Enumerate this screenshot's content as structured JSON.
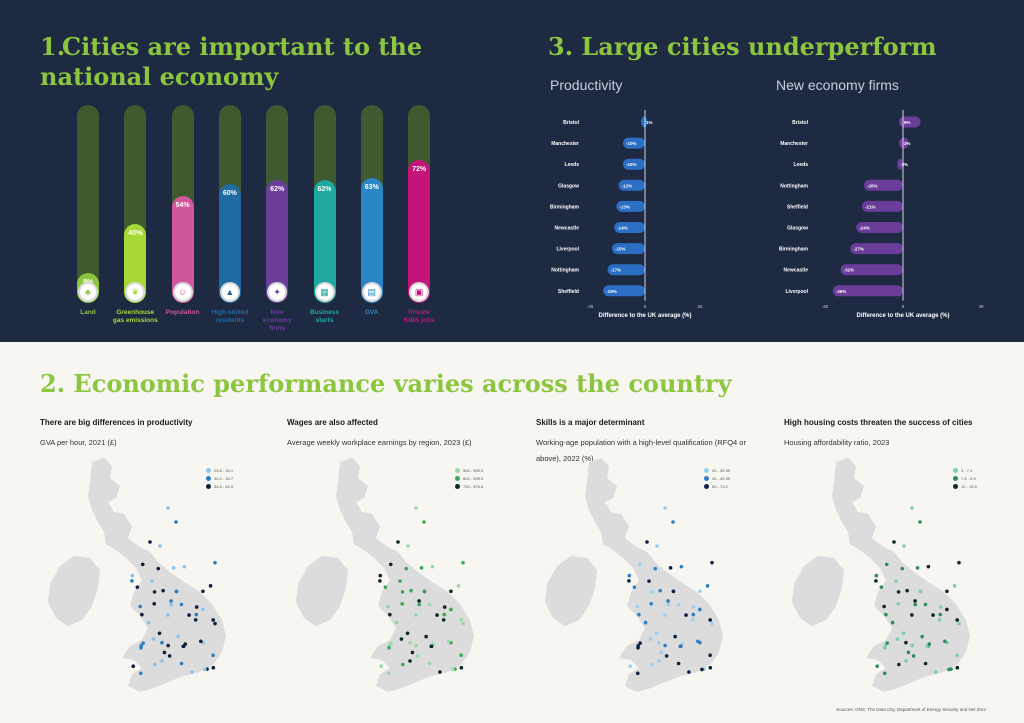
{
  "sections": {
    "s1_number": "1.",
    "s1_title": "Cities are important to the national economy",
    "s3_title": "3. Large cities underperform",
    "s2_title": "2. Economic performance varies across the country",
    "productivity_label": "Productivity",
    "new_economy_label": "New economy firms"
  },
  "colors": {
    "navy": "#1e2a42",
    "green_title": "#8cc63f",
    "track": "#3e5a2e",
    "hbar_blue": "#2a6fc4",
    "hbar_purple": "#6a3d9a"
  },
  "chart_data": [
    {
      "type": "bar",
      "orientation": "vertical",
      "categories": [
        "Land",
        "Greenhouse gas emissions",
        "Population",
        "High-skilled residents",
        "New economy firms",
        "Business starts",
        "GVA",
        "Private KIBS jobs"
      ],
      "values": [
        9,
        40,
        54,
        60,
        62,
        62,
        63,
        72
      ],
      "pct_labels": [
        "9%",
        "40%",
        "54%",
        "60%",
        "62%",
        "62%",
        "63%",
        "72%"
      ],
      "label_lines": [
        [
          "Land"
        ],
        [
          "Greenhouse",
          "gas emissions"
        ],
        [
          "Population"
        ],
        [
          "High-skilled",
          "residents"
        ],
        [
          "New",
          "economy",
          "firms"
        ],
        [
          "Business",
          "starts"
        ],
        [
          "GVA"
        ],
        [
          "Private",
          "KIBS jobs"
        ]
      ],
      "colors": [
        "#8cc63f",
        "#a6d936",
        "#d1579c",
        "#1f6aa0",
        "#6a3d9a",
        "#1fa8a0",
        "#2b86c7",
        "#c4147a"
      ],
      "icons": [
        "tree-icon",
        "leaf-icon",
        "people-icon",
        "graduation-cap-icon",
        "lightbulb-icon",
        "building-icon",
        "money-icon",
        "briefcase-icon"
      ],
      "ylim": [
        0,
        100
      ]
    },
    {
      "type": "bar",
      "orientation": "horizontal",
      "title": "Productivity",
      "categories": [
        "Bristol",
        "Manchester",
        "Leeds",
        "Glasgow",
        "Birmingham",
        "Newcastle",
        "Liverpool",
        "Nottingham",
        "Sheffield"
      ],
      "values": [
        1,
        -10,
        -10,
        -12,
        -13,
        -14,
        -15,
        -17,
        -19
      ],
      "value_labels": [
        "1%",
        "-10%",
        "-10%",
        "-12%",
        "-13%",
        "-14%",
        "-15%",
        "-17%",
        "-19%"
      ],
      "xlabel": "Difference to the UK average (%)",
      "xlim": [
        -25,
        25
      ],
      "ticks": [
        "-25",
        "0",
        "25"
      ]
    },
    {
      "type": "bar",
      "orientation": "horizontal",
      "title": "New economy firms",
      "categories": [
        "Bristol",
        "Manchester",
        "Leeds",
        "Nottingham",
        "Sheffield",
        "Glasgow",
        "Birmingham",
        "Newcastle",
        "Liverpool"
      ],
      "values": [
        9,
        3,
        -3,
        -20,
        -21,
        -24,
        -27,
        -32,
        -36
      ],
      "value_labels": [
        "9%",
        "3%",
        "-3%",
        "-20%",
        "-21%",
        "-24%",
        "-27%",
        "-32%",
        "-36%"
      ],
      "xlabel": "Difference to the UK average (%)",
      "xlim": [
        -40,
        40
      ],
      "ticks": [
        "-40",
        "0",
        "40"
      ]
    }
  ],
  "maps": [
    {
      "title": "There are big differences in productivity",
      "subtitle": "GVA per hour, 2021 (£)",
      "legend": [
        {
          "label": "25.8 - 30.1",
          "color": "#8ec3e8"
        },
        {
          "label": "30.2 - 34.7",
          "color": "#2f7fc0"
        },
        {
          "label": "34.8 - 62.9",
          "color": "#0d2240"
        }
      ],
      "dot_colors": [
        "#8ec3e8",
        "#2f7fc0",
        "#0d2240"
      ]
    },
    {
      "title": "Wages are also affected",
      "subtitle": "Average weekly workplace earnings by region, 2023 (£)",
      "legend": [
        {
          "label": "500 - 599.9",
          "color": "#9ad9a6"
        },
        {
          "label": "600 - 699.9",
          "color": "#3ba85a"
        },
        {
          "label": "700 - 876.8",
          "color": "#0d2a22"
        }
      ],
      "dot_colors": [
        "#9ad9a6",
        "#3ba85a",
        "#0d2a22"
      ]
    },
    {
      "title": "Skills is a major determinant",
      "subtitle": "Working-age population with a high-level qualification (RFQ4 or above), 2022 (%)",
      "legend": [
        {
          "label": "20 - 39.99",
          "color": "#9ad1ee"
        },
        {
          "label": "40 - 49.99",
          "color": "#2f7fc0"
        },
        {
          "label": "50 - 73.2",
          "color": "#0d2240"
        }
      ],
      "dot_colors": [
        "#9ad1ee",
        "#2f7fc0",
        "#0d2240"
      ]
    },
    {
      "title": "High housing costs threaten the success of cities",
      "subtitle": "Housing affordability ratio, 2023",
      "legend": [
        {
          "label": "3 - 7.4",
          "color": "#7ecfa8"
        },
        {
          "label": "7.5 - 9.9",
          "color": "#2f8f5a"
        },
        {
          "label": "10 - 15.5",
          "color": "#0d2a22"
        }
      ],
      "dot_colors": [
        "#7ecfa8",
        "#2f8f5a",
        "#0d2a22"
      ]
    }
  ],
  "sources": "Sources: ONS, The Data City, Department of Energy Security and Net Zero"
}
